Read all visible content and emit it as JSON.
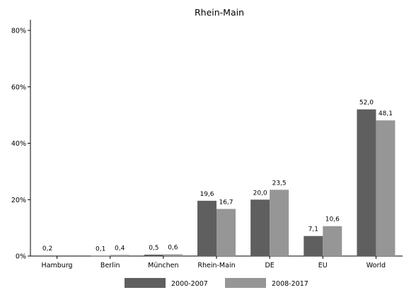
{
  "chart_data": {
    "type": "bar",
    "title": "Rhein-Main",
    "categories": [
      "Hamburg",
      "Berlin",
      "München",
      "Rhein-Main",
      "DE",
      "EU",
      "World"
    ],
    "series": [
      {
        "name": "2000-2007",
        "color": "#5f5f5f",
        "values": [
          0.2,
          0.1,
          0.5,
          19.6,
          20.0,
          7.1,
          52.0
        ],
        "labels": [
          "0,2",
          "0,1",
          "0,5",
          "19,6",
          "20,0",
          "7,1",
          "52,0"
        ]
      },
      {
        "name": "2008-2017",
        "color": "#969696",
        "values": [
          null,
          0.4,
          0.6,
          16.7,
          23.5,
          10.6,
          48.1
        ],
        "labels": [
          null,
          "0,4",
          "0,6",
          "16,7",
          "23,5",
          "10,6",
          "48,1"
        ]
      }
    ],
    "yaxis": {
      "min": 0,
      "max": 80,
      "ticks": [
        0,
        20,
        40,
        60,
        80
      ],
      "tick_labels": [
        "0%",
        "20%",
        "40%",
        "60%",
        "80%"
      ]
    },
    "xlabel": "",
    "ylabel": "",
    "grid": false,
    "legend_position": "bottom"
  }
}
